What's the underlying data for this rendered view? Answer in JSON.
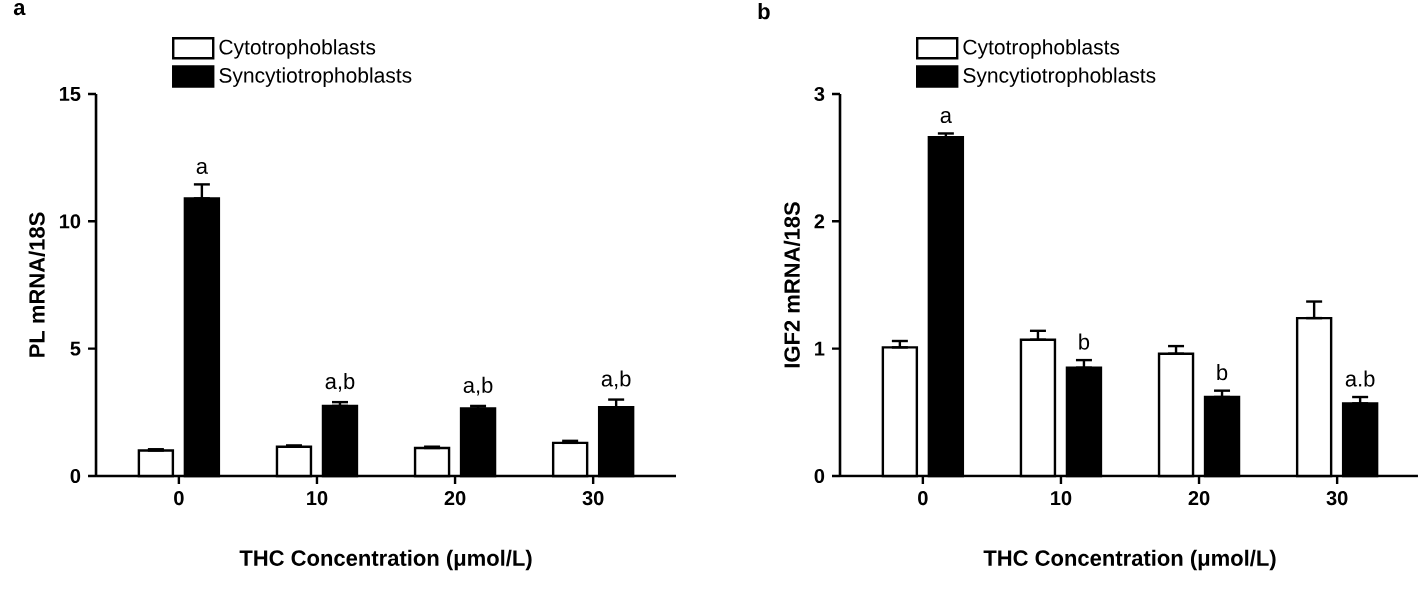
{
  "chart_data": [
    {
      "type": "bar",
      "title": "a",
      "xlabel": "THC Concentration (μmol/L)",
      "ylabel": "PL mRNA/18S",
      "categories": [
        "0",
        "10",
        "20",
        "30"
      ],
      "ylim": [
        0,
        15
      ],
      "yticks": [
        0,
        5,
        10,
        15
      ],
      "legend": "top",
      "series": [
        {
          "name": "Cytotrophoblasts",
          "color": "#ffffff",
          "values": [
            1.0,
            1.15,
            1.1,
            1.3
          ],
          "errors": [
            [
              1.0,
              1.05
            ],
            [
              1.15,
              1.2
            ],
            [
              1.1,
              1.15
            ],
            [
              1.3,
              1.38
            ]
          ]
        },
        {
          "name": "Syncytiotrophoblasts",
          "color": "#000000",
          "values": [
            10.9,
            2.75,
            2.65,
            2.7
          ],
          "errors": [
            [
              10.9,
              11.45
            ],
            [
              2.75,
              2.9
            ],
            [
              2.65,
              2.75
            ],
            [
              2.7,
              3.0
            ]
          ]
        }
      ],
      "annotations": [
        "a",
        "a,b",
        "a,b",
        "a,b"
      ]
    },
    {
      "type": "bar",
      "title": "b",
      "xlabel": "THC Concentration (μmol/L)",
      "ylabel": "IGF2 mRNA/18S",
      "categories": [
        "0",
        "10",
        "20",
        "30"
      ],
      "ylim": [
        0,
        3
      ],
      "yticks": [
        0,
        1,
        2,
        3
      ],
      "legend": "top",
      "series": [
        {
          "name": "Cytotrophoblasts",
          "color": "#ffffff",
          "values": [
            1.01,
            1.07,
            0.96,
            1.24
          ],
          "errors": [
            [
              1.01,
              1.06
            ],
            [
              1.07,
              1.14
            ],
            [
              0.96,
              1.02
            ],
            [
              1.24,
              1.37
            ]
          ]
        },
        {
          "name": "Syncytiotrophoblasts",
          "color": "#000000",
          "values": [
            2.66,
            0.85,
            0.62,
            0.57
          ],
          "errors": [
            [
              2.66,
              2.69
            ],
            [
              0.85,
              0.91
            ],
            [
              0.62,
              0.67
            ],
            [
              0.57,
              0.62
            ]
          ]
        }
      ],
      "annotations": [
        "a",
        "b",
        "b",
        "a.b"
      ]
    }
  ]
}
